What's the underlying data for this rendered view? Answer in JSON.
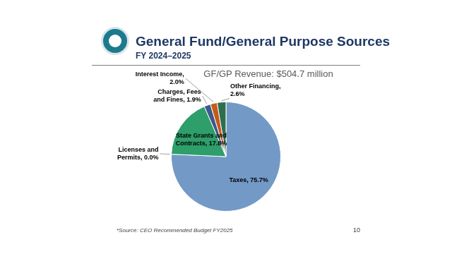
{
  "slide": {
    "title": "General Fund/General Purpose Sources",
    "subtitle": "FY 2024–2025",
    "source": "*Source: CEO Recommended Budget FY2025",
    "page_number": 10
  },
  "chart_data": {
    "type": "pie",
    "title": "GF/GP Revenue: $504.7 million",
    "categories": [
      "Taxes",
      "Licenses and Permits",
      "State Grants and Contracts",
      "Charges, Fees and Fines",
      "Interest Income",
      "Other Financing"
    ],
    "values": [
      75.7,
      0.0,
      17.8,
      1.9,
      2.0,
      2.6
    ],
    "value_labels": [
      "Taxes, 75.7%",
      "Licenses and Permits, 0.0%",
      "State Grants and Contracts, 17.8%",
      "Charges, Fees and Fines, 1.9%",
      "Interest Income, 2.0%",
      "Other Financing, 2.6%"
    ],
    "colors": [
      "#7399c6",
      "#4a6fa5",
      "#2e9e6a",
      "#3d5a8a",
      "#c55a1c",
      "#2d6e4e"
    ],
    "data_labels": true
  }
}
